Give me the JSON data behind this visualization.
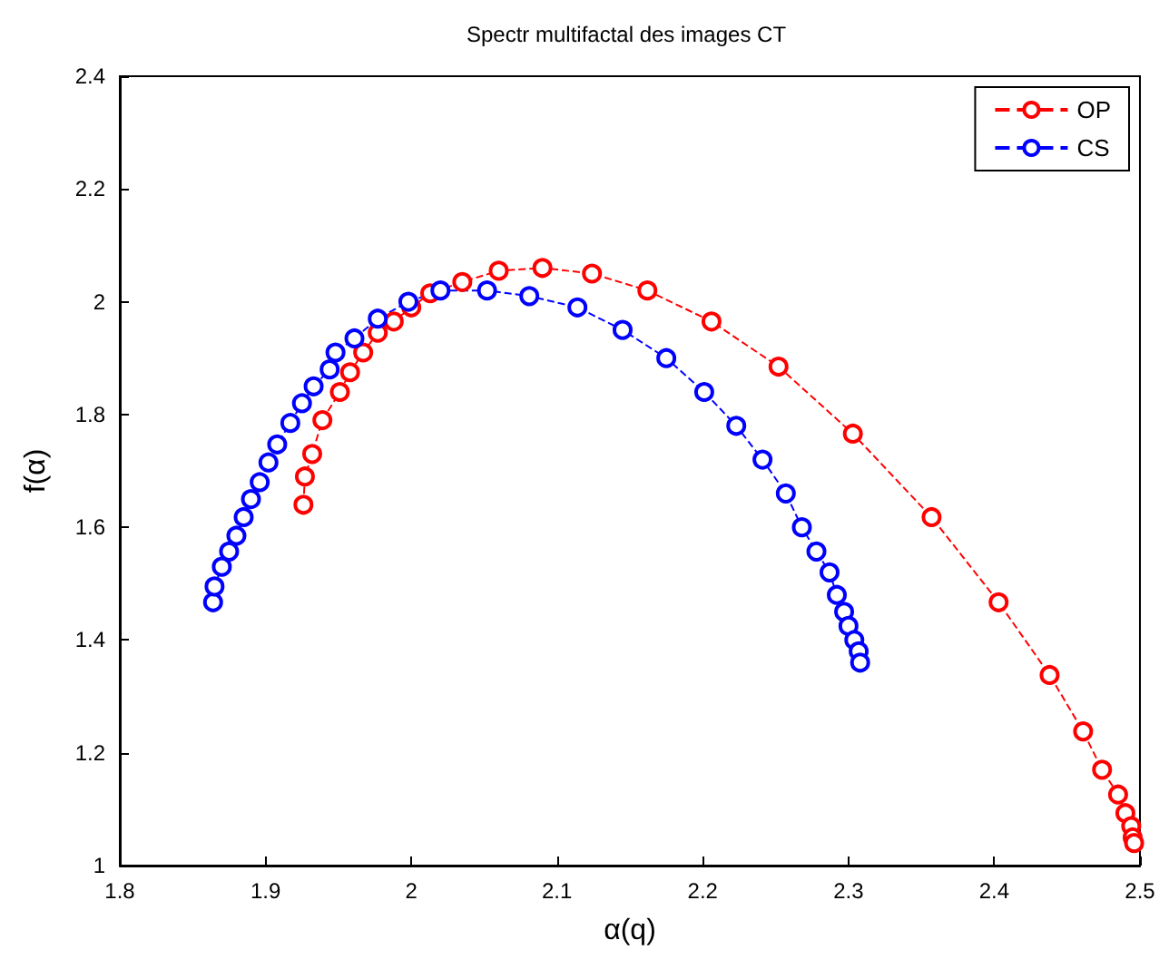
{
  "chart_data": {
    "type": "line",
    "title": "Spectr multifactal des images CT",
    "xlabel": "α(q)",
    "ylabel": "f(α)",
    "xlim": [
      1.8,
      2.5
    ],
    "ylim": [
      1,
      2.4
    ],
    "xticks": [
      1.8,
      1.9,
      2,
      2.1,
      2.2,
      2.3,
      2.4,
      2.5
    ],
    "yticks": [
      1,
      1.2,
      1.4,
      1.6,
      1.8,
      2,
      2.2,
      2.4
    ],
    "grid": false,
    "legend": "top right",
    "marker": "circle",
    "line_style": "dashed",
    "series": [
      {
        "name": "OP",
        "color": "#ff0000",
        "x": [
          1.926,
          1.927,
          1.932,
          1.939,
          1.951,
          1.958,
          1.967,
          1.977,
          1.988,
          2.0,
          2.013,
          2.035,
          2.06,
          2.09,
          2.124,
          2.162,
          2.206,
          2.252,
          2.303,
          2.357,
          2.403,
          2.438,
          2.461,
          2.474,
          2.485,
          2.49,
          2.494,
          2.495,
          2.496
        ],
        "values": [
          1.64,
          1.69,
          1.73,
          1.79,
          1.84,
          1.875,
          1.91,
          1.945,
          1.965,
          1.99,
          2.015,
          2.035,
          2.055,
          2.06,
          2.05,
          2.02,
          1.965,
          1.885,
          1.766,
          1.618,
          1.467,
          1.338,
          1.238,
          1.17,
          1.126,
          1.093,
          1.07,
          1.05,
          1.04
        ]
      },
      {
        "name": "CS",
        "color": "#0000ff",
        "x": [
          1.864,
          1.865,
          1.87,
          1.875,
          1.88,
          1.885,
          1.89,
          1.896,
          1.902,
          1.908,
          1.917,
          1.925,
          1.933,
          1.944,
          1.948,
          1.961,
          1.977,
          1.998,
          2.02,
          2.052,
          2.081,
          2.114,
          2.145,
          2.175,
          2.201,
          2.223,
          2.241,
          2.257,
          2.268,
          2.278,
          2.287,
          2.292,
          2.297,
          2.3,
          2.304,
          2.307,
          2.308
        ],
        "values": [
          1.467,
          1.495,
          1.53,
          1.557,
          1.585,
          1.618,
          1.65,
          1.68,
          1.715,
          1.747,
          1.785,
          1.82,
          1.85,
          1.88,
          1.91,
          1.935,
          1.97,
          2.0,
          2.02,
          2.02,
          2.01,
          1.99,
          1.95,
          1.9,
          1.84,
          1.78,
          1.72,
          1.66,
          1.6,
          1.557,
          1.52,
          1.48,
          1.45,
          1.425,
          1.4,
          1.38,
          1.36
        ]
      }
    ]
  }
}
